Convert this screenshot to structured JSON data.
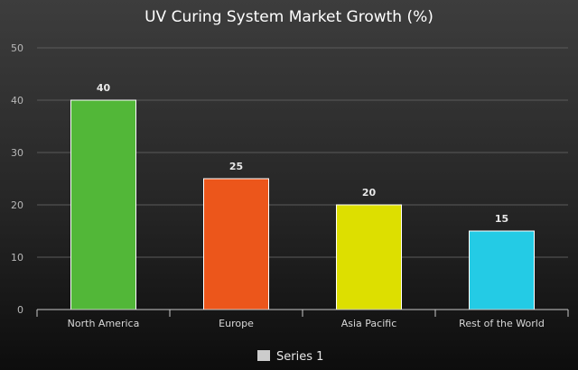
{
  "chart_data": {
    "type": "bar",
    "title": "UV Curing System Market Growth (%)",
    "categories": [
      "North America",
      "Europe",
      "Asia Pacific",
      "Rest of the World"
    ],
    "series": [
      {
        "name": "Series 1",
        "values": [
          40,
          25,
          20,
          15
        ]
      }
    ],
    "bar_colors": [
      "#52b738",
      "#ec561b",
      "#dddf00",
      "#24cbe5"
    ],
    "ylim": [
      0,
      50
    ],
    "yticks": [
      0,
      10,
      20,
      30,
      40,
      50
    ],
    "grid": true,
    "legend_position": "bottom-center",
    "legend_swatch_color": "#cccccc"
  }
}
